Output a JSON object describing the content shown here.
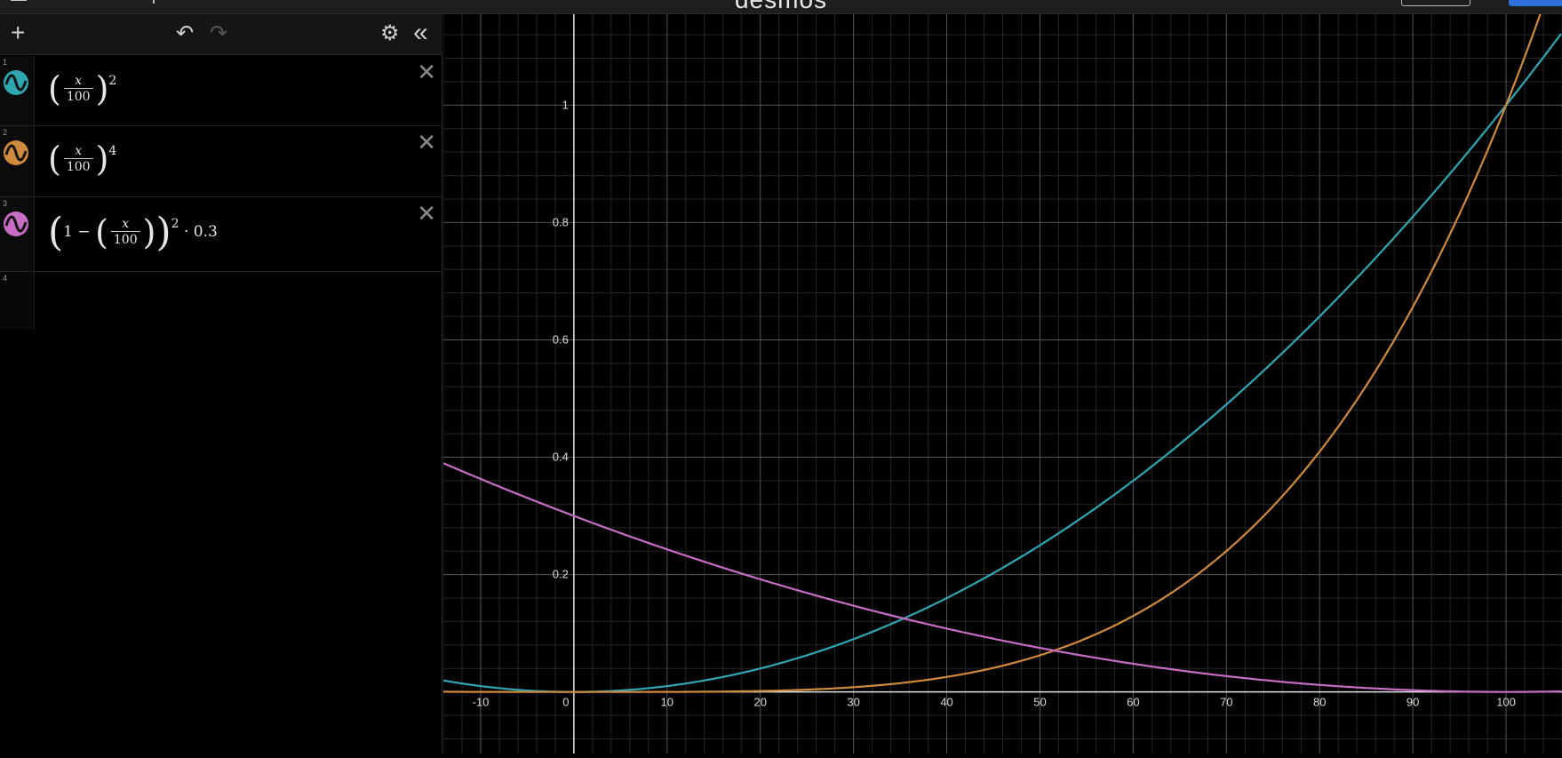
{
  "app": {
    "title": "desmos"
  },
  "toolbar": {
    "add_label": "+",
    "undo_label": "↶",
    "redo_label": "↷",
    "settings_label": "⚙",
    "collapse_label": "«",
    "icons": [
      "plus-icon",
      "undo-icon",
      "redo-icon",
      "gear-icon",
      "collapse-icon"
    ]
  },
  "expressions": [
    {
      "index": "1",
      "color": "#2fa7b3",
      "numerator": "x",
      "denominator": "100",
      "exponent": "2"
    },
    {
      "index": "2",
      "color": "#d08a3e",
      "numerator": "x",
      "denominator": "100",
      "exponent": "4"
    },
    {
      "index": "3",
      "color": "#c76dc6",
      "one": "1",
      "minus": "−",
      "numerator": "x",
      "denominator": "100",
      "exponent": "2",
      "tail": "· 0.3"
    },
    {
      "index": "4"
    }
  ],
  "close_label": "✕",
  "chart_data": {
    "type": "line",
    "xlim": [
      -14,
      106
    ],
    "ylim": [
      -0.105,
      1.155
    ],
    "x_ticks": [
      -10,
      0,
      10,
      20,
      30,
      40,
      50,
      60,
      70,
      80,
      90,
      100
    ],
    "x_tick_labels": [
      "-10",
      "0",
      "10",
      "20",
      "30",
      "40",
      "50",
      "60",
      "70",
      "80",
      "90",
      "100"
    ],
    "y_ticks": [
      0.2,
      0.4,
      0.6,
      0.8,
      1
    ],
    "y_tick_labels": [
      "0.2",
      "0.4",
      "0.6",
      "0.8",
      "1"
    ],
    "grid": true,
    "series": [
      {
        "color": "#2fa7b3",
        "function": "(x/100)^2"
      },
      {
        "color": "#d08a3e",
        "function": "(x/100)^4"
      },
      {
        "color": "#c76dc6",
        "function": "(1-(x/100))^2*0.3"
      }
    ]
  }
}
